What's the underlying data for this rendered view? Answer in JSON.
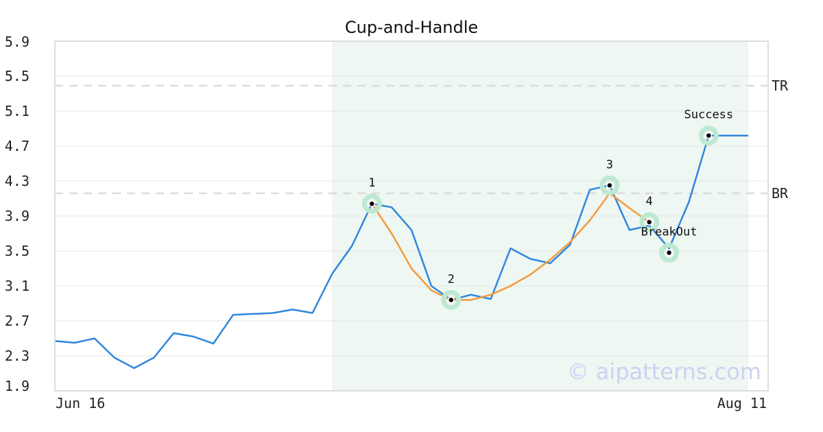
{
  "chart_data": {
    "type": "line",
    "title": "Cup-and-Handle",
    "xlabel": "",
    "ylabel": "",
    "x_tick_labels": [
      "Jun 16",
      "Aug 11"
    ],
    "y_ticks": [
      "1.9",
      "2.3",
      "2.7",
      "3.1",
      "3.5",
      "3.9",
      "4.3",
      "4.7",
      "5.1",
      "5.5",
      "5.9"
    ],
    "ylim": [
      1.9,
      5.9
    ],
    "grid": "horizontal",
    "n_points": 37,
    "series": [
      {
        "color": "#2e86de",
        "points": [
          [
            0,
            2.47
          ],
          [
            1,
            2.45
          ],
          [
            2,
            2.5
          ],
          [
            3,
            2.28
          ],
          [
            4,
            2.16
          ],
          [
            5,
            2.28
          ],
          [
            6,
            2.56
          ],
          [
            7,
            2.52
          ],
          [
            8,
            2.44
          ],
          [
            9,
            2.77
          ],
          [
            10,
            2.78
          ],
          [
            11,
            2.79
          ],
          [
            12,
            2.83
          ],
          [
            13,
            2.79
          ],
          [
            14,
            3.24
          ],
          [
            15,
            3.56
          ],
          [
            16,
            4.04
          ],
          [
            17,
            4.0
          ],
          [
            18,
            3.74
          ],
          [
            19,
            3.1
          ],
          [
            20,
            2.94
          ],
          [
            21,
            3.0
          ],
          [
            22,
            2.95
          ],
          [
            23,
            3.53
          ],
          [
            24,
            3.41
          ],
          [
            25,
            3.36
          ],
          [
            26,
            3.57
          ],
          [
            27,
            4.2
          ],
          [
            28,
            4.25
          ],
          [
            29,
            3.74
          ],
          [
            30,
            3.79
          ],
          [
            31,
            3.53
          ],
          [
            32,
            4.06
          ],
          [
            33,
            4.82
          ],
          [
            34,
            4.82
          ],
          [
            35,
            4.82
          ]
        ]
      },
      {
        "color": "#f39a3d",
        "points": [
          [
            16,
            4.04
          ],
          [
            17,
            3.7
          ],
          [
            18,
            3.3
          ],
          [
            19,
            3.05
          ],
          [
            20,
            2.94
          ],
          [
            21,
            2.94
          ],
          [
            22,
            3.0
          ],
          [
            23,
            3.1
          ],
          [
            24,
            3.23
          ],
          [
            25,
            3.4
          ],
          [
            26,
            3.6
          ],
          [
            27,
            3.85
          ],
          [
            28,
            4.16
          ],
          [
            29,
            3.99
          ],
          [
            30,
            3.83
          ]
        ]
      }
    ],
    "highlight": {
      "x_start": 14,
      "x_end": 35,
      "color": "#eef7f2"
    },
    "levels": [
      {
        "label": "TR",
        "value": 5.39
      },
      {
        "label": "BR",
        "value": 4.16
      }
    ],
    "markers": [
      {
        "label": "1",
        "x": 16,
        "y": 4.04,
        "label_pos": "above"
      },
      {
        "label": "2",
        "x": 20,
        "y": 2.94,
        "label_pos": "above"
      },
      {
        "label": "3",
        "x": 28,
        "y": 4.25,
        "label_pos": "above"
      },
      {
        "label": "4",
        "x": 30,
        "y": 3.83,
        "label_pos": "above"
      },
      {
        "label": "BreakOut",
        "x": 31,
        "y": 3.48,
        "label_pos": "above"
      },
      {
        "label": "Success",
        "x": 33,
        "y": 4.82,
        "label_pos": "above"
      }
    ],
    "marker_ring_color": "#bfe8d2",
    "watermark": "© aipatterns.com"
  }
}
